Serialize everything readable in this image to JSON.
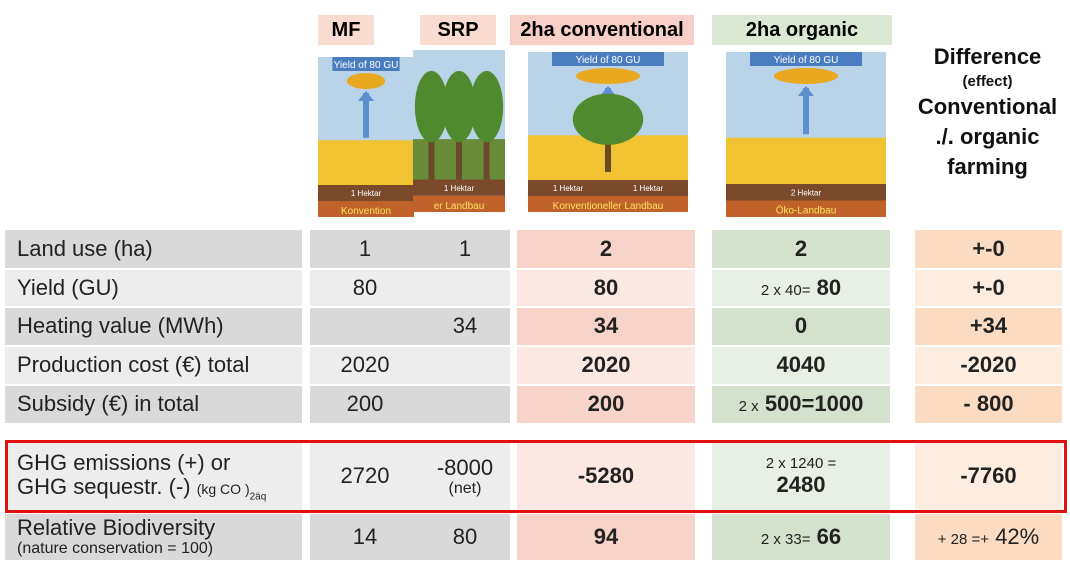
{
  "header": {
    "columns": [
      "MF",
      "SRP",
      "2ha conventional",
      "2ha organic"
    ],
    "difference": [
      "Difference",
      "(effect)",
      "Conventional",
      "./. organic",
      "farming"
    ]
  },
  "images": [
    {
      "yield": "Yield of 80 GU",
      "plots": [
        "1 Hektar"
      ],
      "label": "Konvention"
    },
    {
      "plots": [
        "1 Hektar"
      ],
      "label": "er Landbau"
    },
    {
      "yield": "Yield of 80 GU",
      "plots": [
        "1 Hektar",
        "1 Hektar"
      ],
      "label": "Konventioneller Landbau"
    },
    {
      "yield": "Yield of 80 GU",
      "plots": [
        "2 Hektar"
      ],
      "label": "Öko-Landbau"
    }
  ],
  "rows": [
    {
      "label": {
        "main": "Land use (ha)"
      },
      "cells": [
        "1",
        "1",
        "2",
        "2",
        "+-0"
      ]
    },
    {
      "label": {
        "main": "Yield (GU)"
      },
      "cells": [
        "80",
        null,
        "80",
        {
          "pre": "2 x 40=",
          "main": "80"
        },
        "+-0"
      ]
    },
    {
      "label": {
        "main": "Heating value (MWh)"
      },
      "cells": [
        null,
        "34",
        "34",
        "0",
        "+34"
      ]
    },
    {
      "label": {
        "main": "Production cost (€) total"
      },
      "cells": [
        "2020",
        null,
        "2020",
        "4040",
        "-2020"
      ]
    },
    {
      "label": {
        "main": "Subsidy (€) in total"
      },
      "cells": [
        "200",
        null,
        "200",
        {
          "pre": "2 x",
          "main": "500=1000"
        },
        "- 800"
      ]
    },
    {
      "label": {
        "main": "GHG emissions (+) or",
        "line2": "GHG sequestr. (-)",
        "unit": "(kg CO )",
        "sub": "2äq"
      },
      "cells": [
        "2720",
        {
          "main": "-8000",
          "note": "(net)"
        },
        "-5280",
        {
          "top": "2 x 1240 =",
          "main": "2480"
        },
        "-7760"
      ]
    },
    {
      "label": {
        "main": "Relative Biodiversity",
        "note": "(nature conservation = 100)"
      },
      "cells": [
        "14",
        "80",
        "94",
        {
          "pre": "2 x 33=",
          "main": "66"
        },
        {
          "pre": "+ 28 =+",
          "main": "42%"
        }
      ]
    }
  ]
}
